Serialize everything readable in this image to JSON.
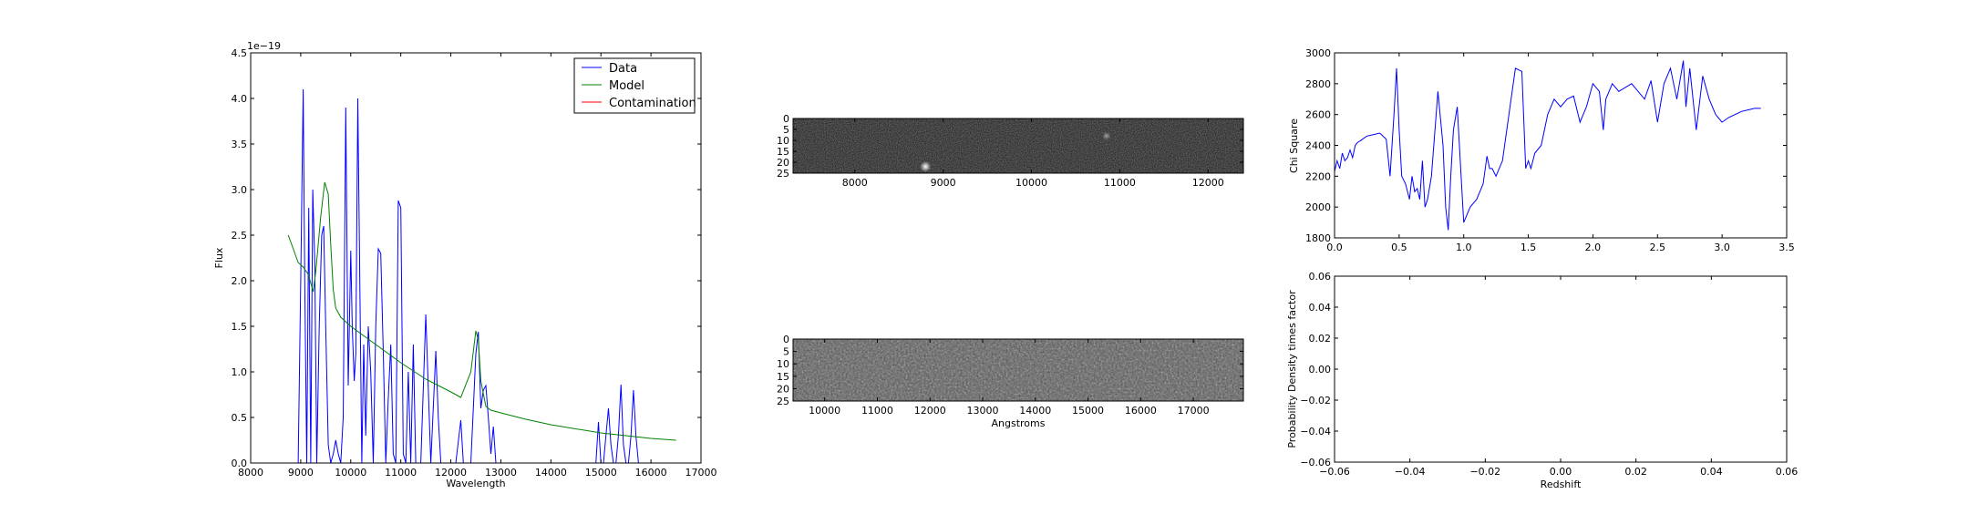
{
  "chart_data": [
    {
      "type": "line",
      "panel": "spectrum",
      "xlabel": "Wavelength",
      "ylabel": "Flux",
      "y_offset_label": "1e−19",
      "xlim": [
        8000,
        17000
      ],
      "ylim": [
        0,
        4.5
      ],
      "xticks": [
        "8000",
        "9000",
        "10000",
        "11000",
        "12000",
        "13000",
        "14000",
        "15000",
        "16000",
        "17000"
      ],
      "yticks": [
        "0.0",
        "0.5",
        "1.0",
        "1.5",
        "2.0",
        "2.5",
        "3.0",
        "3.5",
        "4.0",
        "4.5"
      ],
      "legend_position": "top-right",
      "series": [
        {
          "name": "Data",
          "color": "#0000ff",
          "x": [
            8950,
            9000,
            9050,
            9080,
            9120,
            9160,
            9200,
            9240,
            9280,
            9320,
            9370,
            9420,
            9460,
            9500,
            9550,
            9600,
            9650,
            9700,
            9750,
            9800,
            9850,
            9900,
            9950,
            10000,
            10030,
            10070,
            10100,
            10140,
            10180,
            10220,
            10260,
            10300,
            10350,
            10400,
            10450,
            10500,
            10550,
            10600,
            10650,
            10700,
            10750,
            10800,
            10850,
            10900,
            10950,
            11000,
            11050,
            11100,
            11150,
            11200,
            11250,
            11300,
            11400,
            11500,
            11600,
            11700,
            11750,
            11800,
            11850,
            11900,
            11950,
            12000,
            12100,
            12200,
            12250,
            12300,
            12400,
            12500,
            12550,
            12600,
            12650,
            12700,
            12750,
            12800,
            12850,
            12900,
            12950,
            13000,
            13500,
            14000,
            14500,
            14900,
            14950,
            15000,
            15050,
            15100,
            15150,
            15200,
            15250,
            15300,
            15350,
            15400,
            15450,
            15500,
            15550,
            15600,
            15650,
            15700,
            15750,
            15800,
            15850,
            15900,
            16000
          ],
          "y": [
            0,
            2.0,
            4.1,
            2.0,
            0,
            2.8,
            0,
            3.0,
            2.2,
            0,
            1.5,
            2.5,
            2.6,
            1.5,
            0.2,
            0,
            0.1,
            0.25,
            0.1,
            0,
            0.5,
            3.9,
            0.85,
            2.33,
            1.5,
            0.9,
            1.2,
            4.0,
            2.0,
            0,
            1.3,
            0.3,
            1.5,
            1.0,
            0,
            1.5,
            2.35,
            2.3,
            1.2,
            0,
            0.7,
            1.3,
            0.1,
            0,
            2.88,
            2.8,
            0.1,
            0,
            1.0,
            0,
            1.3,
            0,
            0,
            1.63,
            0,
            1.23,
            0.5,
            0,
            0,
            0,
            0,
            0,
            0,
            0.47,
            0,
            0,
            0,
            1.2,
            1.44,
            0.6,
            0.8,
            0.85,
            0.5,
            0.1,
            0.4,
            0,
            0,
            0,
            0,
            0,
            0,
            0,
            0.45,
            0,
            0,
            0.3,
            0.6,
            0.2,
            0,
            0,
            0.3,
            0.86,
            0.2,
            0,
            0,
            0.3,
            0.8,
            0.3,
            0,
            0,
            0,
            0,
            0
          ]
        },
        {
          "name": "Model",
          "color": "#008000",
          "x": [
            8750,
            8850,
            8950,
            9050,
            9150,
            9250,
            9300,
            9400,
            9480,
            9550,
            9600,
            9650,
            9700,
            9800,
            10000,
            10500,
            11000,
            11500,
            12000,
            12200,
            12400,
            12500,
            12550,
            12600,
            12700,
            12800,
            13000,
            13500,
            14000,
            15000,
            16000,
            16500
          ],
          "y": [
            2.5,
            2.35,
            2.2,
            2.15,
            2.07,
            1.88,
            2.1,
            2.7,
            3.08,
            2.95,
            2.4,
            1.9,
            1.7,
            1.6,
            1.5,
            1.3,
            1.1,
            0.92,
            0.78,
            0.72,
            1.0,
            1.45,
            1.35,
            0.9,
            0.62,
            0.58,
            0.55,
            0.48,
            0.42,
            0.33,
            0.27,
            0.25
          ]
        },
        {
          "name": "Contamination",
          "color": "#ff0000",
          "x": [
            8750,
            16500
          ],
          "y": [
            0,
            0
          ]
        }
      ]
    },
    {
      "type": "heatmap",
      "panel": "2d-spectrum-top",
      "xlim": [
        7300,
        12400
      ],
      "ylim": [
        25,
        0
      ],
      "xticks": [
        "8000",
        "9000",
        "10000",
        "11000",
        "12000"
      ],
      "yticks": [
        "0",
        "5",
        "10",
        "15",
        "20",
        "25"
      ],
      "features": [
        {
          "x": 8800,
          "y": 22,
          "strength": 1.0
        },
        {
          "x": 10850,
          "y": 8,
          "strength": 0.5
        }
      ]
    },
    {
      "type": "heatmap",
      "panel": "2d-spectrum-bottom",
      "xlabel": "Angstroms",
      "xlim": [
        9400,
        17950
      ],
      "ylim": [
        25,
        0
      ],
      "xticks": [
        "10000",
        "11000",
        "12000",
        "13000",
        "14000",
        "15000",
        "16000",
        "17000"
      ],
      "yticks": [
        "0",
        "5",
        "10",
        "15",
        "20",
        "25"
      ]
    },
    {
      "type": "line",
      "panel": "chi-square",
      "ylabel": "Chi Square",
      "xlim": [
        0,
        3.5
      ],
      "ylim": [
        1800,
        3000
      ],
      "xticks": [
        "0.0",
        "0.5",
        "1.0",
        "1.5",
        "2.0",
        "2.5",
        "3.0",
        "3.5"
      ],
      "yticks": [
        "1800",
        "2000",
        "2200",
        "2400",
        "2600",
        "2800",
        "3000"
      ],
      "series": [
        {
          "color": "#0000ff",
          "x": [
            0,
            0.02,
            0.04,
            0.06,
            0.08,
            0.1,
            0.12,
            0.14,
            0.16,
            0.18,
            0.2,
            0.25,
            0.3,
            0.35,
            0.4,
            0.43,
            0.46,
            0.48,
            0.5,
            0.52,
            0.55,
            0.58,
            0.6,
            0.62,
            0.64,
            0.66,
            0.68,
            0.7,
            0.72,
            0.75,
            0.8,
            0.84,
            0.86,
            0.88,
            0.9,
            0.92,
            0.95,
            1.0,
            1.05,
            1.1,
            1.15,
            1.18,
            1.2,
            1.22,
            1.25,
            1.3,
            1.35,
            1.4,
            1.45,
            1.48,
            1.5,
            1.52,
            1.55,
            1.6,
            1.65,
            1.7,
            1.75,
            1.8,
            1.85,
            1.9,
            1.95,
            2.0,
            2.05,
            2.08,
            2.1,
            2.15,
            2.2,
            2.3,
            2.4,
            2.45,
            2.5,
            2.55,
            2.6,
            2.65,
            2.7,
            2.72,
            2.75,
            2.8,
            2.85,
            2.9,
            2.95,
            3.0,
            3.05,
            3.1,
            3.15,
            3.2,
            3.25,
            3.3
          ],
          "y": [
            2230,
            2300,
            2250,
            2350,
            2300,
            2320,
            2370,
            2320,
            2400,
            2420,
            2430,
            2460,
            2470,
            2480,
            2440,
            2200,
            2600,
            2900,
            2500,
            2200,
            2150,
            2050,
            2200,
            2100,
            2120,
            2050,
            2300,
            2000,
            2050,
            2200,
            2750,
            2400,
            2000,
            1850,
            2200,
            2500,
            2650,
            1900,
            2000,
            2050,
            2150,
            2330,
            2250,
            2250,
            2200,
            2300,
            2600,
            2900,
            2880,
            2250,
            2300,
            2250,
            2350,
            2400,
            2600,
            2700,
            2650,
            2700,
            2720,
            2550,
            2650,
            2800,
            2750,
            2500,
            2700,
            2800,
            2750,
            2800,
            2700,
            2820,
            2550,
            2800,
            2900,
            2700,
            2950,
            2650,
            2900,
            2500,
            2850,
            2700,
            2600,
            2550,
            2580,
            2600,
            2620,
            2630,
            2640,
            2640
          ]
        }
      ]
    },
    {
      "type": "line",
      "panel": "probability",
      "xlabel": "Redshift",
      "ylabel": "Probability Density times factor",
      "xlim": [
        -0.06,
        0.06
      ],
      "ylim": [
        -0.06,
        0.06
      ],
      "xticks": [
        "−0.06",
        "−0.04",
        "−0.02",
        "0.00",
        "0.02",
        "0.04",
        "0.06"
      ],
      "yticks": [
        "−0.06",
        "−0.04",
        "−0.02",
        "0.00",
        "0.02",
        "0.04",
        "0.06"
      ],
      "series": []
    }
  ]
}
